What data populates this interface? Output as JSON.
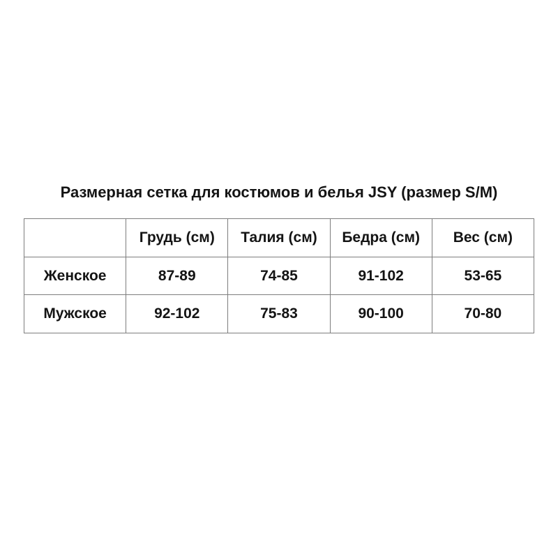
{
  "title": "Размерная сетка для костюмов и белья JSY (размер S/M)",
  "table": {
    "columns": [
      "",
      "Грудь (см)",
      "Талия (см)",
      "Бедра (см)",
      "Вес (см)"
    ],
    "rows": [
      {
        "label": "Женское",
        "values": [
          "87-89",
          "74-85",
          "91-102",
          "53-65"
        ]
      },
      {
        "label": "Мужское",
        "values": [
          "92-102",
          "75-83",
          "90-100",
          "70-80"
        ]
      }
    ]
  },
  "colors": {
    "background": "#ffffff",
    "text": "#141414",
    "border": "#7d7d7d"
  }
}
